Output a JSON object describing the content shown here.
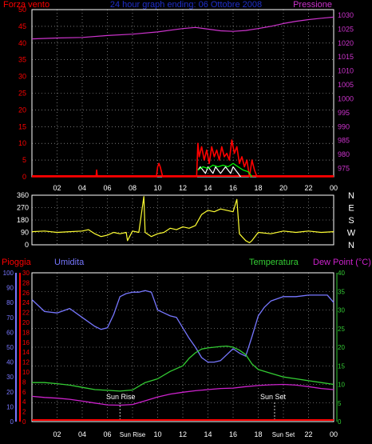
{
  "colors": {
    "wind": "#ff0000",
    "gust": "#ffffff",
    "avgwind": "#00ff00",
    "pressure": "#cc33cc",
    "direction": "#ffff33",
    "rain": "#ff0000",
    "humidity": "#7777ff",
    "temperature": "#33cc33",
    "dewpoint": "#cc22cc",
    "grid": "#bbbbbb",
    "title": "#1f2fcc"
  },
  "chart_data": [
    {
      "type": "line",
      "title": "24 hour graph ending: 06 Ottobre 2008",
      "left_label": "Forza vento",
      "right_label": "Pressione",
      "left_ticks": [
        "0",
        "5",
        "10",
        "15",
        "20",
        "25",
        "30",
        "35",
        "40",
        "45",
        "50"
      ],
      "right_ticks": [
        "975",
        "980",
        "985",
        "990",
        "995",
        "1000",
        "1005",
        "1010",
        "1015",
        "1020",
        "1025",
        "1030"
      ],
      "x_ticks": [
        "02",
        "04",
        "06",
        "08",
        "10",
        "12",
        "14",
        "16",
        "18",
        "20",
        "22",
        "00"
      ],
      "left_range": [
        0,
        50
      ],
      "right_range": [
        972,
        1032
      ],
      "x_range": [
        0,
        24
      ],
      "grid": true,
      "series": [
        {
          "key": "pressure",
          "axis": "right",
          "x": [
            0,
            2,
            4,
            6,
            8,
            10,
            12,
            13,
            14,
            15,
            16,
            17,
            18,
            19,
            20,
            21,
            22,
            23,
            24
          ],
          "y": [
            1021.5,
            1021.8,
            1022,
            1022.7,
            1023.2,
            1024,
            1025.2,
            1025.6,
            1025,
            1024.4,
            1024.2,
            1024.5,
            1025.2,
            1026,
            1027,
            1027.8,
            1028.4,
            1028.9,
            1029.3
          ]
        },
        {
          "key": "wind",
          "axis": "left",
          "x": [
            0,
            5.1,
            5.15,
            5.2,
            9.9,
            10.0,
            10.1,
            10.2,
            10.4,
            13.1,
            13.2,
            13.3,
            13.5,
            13.7,
            13.9,
            14.1,
            14.3,
            14.5,
            14.7,
            14.9,
            15.1,
            15.3,
            15.5,
            15.7,
            15.9,
            16.1,
            16.3,
            16.5,
            16.7,
            16.9,
            17.1,
            17.3,
            17.5,
            17.7,
            17.9,
            18.0,
            24
          ],
          "y": [
            0,
            0,
            2,
            0,
            0,
            3,
            4,
            3,
            0,
            0,
            10,
            6,
            9,
            5,
            8,
            4,
            9,
            6,
            8,
            5,
            9,
            6,
            7,
            5,
            11,
            7,
            9,
            4,
            6,
            3,
            5,
            0,
            5,
            2,
            0,
            0,
            0
          ]
        },
        {
          "key": "gust",
          "axis": "left",
          "x": [
            13.2,
            13.4,
            13.6,
            13.8,
            14.0,
            14.2,
            14.4,
            14.6,
            14.8,
            15.0,
            15.2,
            15.4,
            15.6,
            15.8,
            16.0,
            16.2,
            16.4,
            16.6
          ],
          "y": [
            2,
            3,
            2,
            1,
            3,
            2,
            1,
            3,
            2,
            1,
            2,
            3,
            2,
            1,
            3,
            2,
            1,
            0
          ]
        },
        {
          "key": "avgwind",
          "axis": "left",
          "x": [
            13.2,
            13.6,
            14.0,
            14.4,
            14.8,
            15.2,
            15.6,
            16.0,
            16.4,
            16.8,
            17.2,
            17.5
          ],
          "y": [
            2,
            3,
            2.5,
            3.5,
            3,
            3.5,
            3,
            4,
            3,
            2,
            1.5,
            0
          ]
        }
      ]
    },
    {
      "type": "line",
      "left_ticks": [
        "0",
        "90",
        "180",
        "270",
        "360"
      ],
      "right_labels": [
        "N",
        "W",
        "S",
        "E",
        "N"
      ],
      "left_range": [
        0,
        360
      ],
      "x_range": [
        0,
        24
      ],
      "grid": true,
      "series": [
        {
          "key": "direction",
          "x": [
            0,
            1,
            2,
            3,
            4,
            4.5,
            5,
            5.5,
            6,
            6.5,
            7,
            7.5,
            7.6,
            8,
            8.5,
            8.9,
            9,
            9.5,
            10,
            10.5,
            11,
            11.5,
            12,
            12.5,
            13,
            13.5,
            14,
            14.5,
            15,
            15.5,
            16,
            16.3,
            16.5,
            16.7,
            17,
            17.3,
            17.5,
            18,
            19,
            20,
            21,
            22,
            23,
            24
          ],
          "y": [
            95,
            100,
            90,
            95,
            100,
            110,
            80,
            60,
            70,
            90,
            80,
            90,
            30,
            100,
            90,
            350,
            90,
            60,
            80,
            90,
            120,
            110,
            130,
            120,
            140,
            220,
            250,
            240,
            260,
            250,
            240,
            330,
            80,
            60,
            30,
            15,
            30,
            90,
            80,
            100,
            90,
            100,
            90,
            95
          ]
        }
      ]
    },
    {
      "type": "line",
      "top_labels": [
        "Pioggia",
        "Umidita",
        "Temperatura",
        "Dew Point (°C)"
      ],
      "humidity_ticks": [
        "0",
        "10",
        "20",
        "30",
        "40",
        "50",
        "60",
        "70",
        "80",
        "90",
        "100"
      ],
      "rain_ticks": [
        "0",
        "2",
        "4",
        "6",
        "8",
        "10",
        "12",
        "14",
        "16",
        "18",
        "20",
        "22",
        "24",
        "26",
        "28",
        "30"
      ],
      "temp_ticks": [
        "0",
        "5",
        "10",
        "15",
        "20",
        "25",
        "30",
        "35",
        "40"
      ],
      "x_ticks": [
        "02",
        "04",
        "06",
        "Sun Rise",
        "10",
        "12",
        "14",
        "16",
        "18",
        "Sun Set",
        "22",
        "00"
      ],
      "annotations": [
        "Sun Rise",
        "Sun Set"
      ],
      "humidity_range": [
        0,
        100
      ],
      "temp_range": [
        0,
        40
      ],
      "x_range": [
        0,
        24
      ],
      "grid": true,
      "series": [
        {
          "key": "humidity",
          "axis": "humidity",
          "x": [
            0,
            1,
            2,
            3,
            4,
            5,
            5.5,
            6,
            6.5,
            7,
            7.5,
            8,
            8.5,
            9,
            9.5,
            10,
            10.5,
            11,
            11.5,
            12,
            12.5,
            13,
            13.5,
            14,
            14.5,
            15,
            15.5,
            16,
            16.5,
            17,
            17.5,
            18,
            18.5,
            19,
            20,
            21,
            22,
            23,
            23.5,
            24
          ],
          "y": [
            82,
            74,
            73,
            76,
            70,
            64,
            62,
            63,
            72,
            84,
            86,
            87,
            87,
            88,
            87,
            75,
            73,
            71,
            70,
            63,
            56,
            50,
            43,
            40,
            40,
            41,
            45,
            49,
            46,
            44,
            57,
            71,
            77,
            81,
            84,
            84,
            85,
            85,
            85,
            80
          ]
        },
        {
          "key": "temperature",
          "axis": "temp",
          "x": [
            0,
            1,
            2,
            3,
            4,
            5,
            6,
            7,
            8,
            9,
            10,
            11,
            12,
            12.5,
            13,
            13.5,
            14,
            14.5,
            15,
            15.5,
            16,
            16.5,
            17,
            17.5,
            18,
            19,
            20,
            21,
            22,
            23,
            24
          ],
          "y": [
            10.5,
            10.5,
            10.2,
            9.8,
            9.2,
            8.6,
            8.4,
            8.2,
            8.5,
            10.5,
            11.5,
            13.5,
            15,
            17,
            18.5,
            19.5,
            19.8,
            20,
            20.2,
            20.3,
            20,
            19.2,
            18,
            15.5,
            14,
            13,
            12,
            11.5,
            11,
            10.5,
            10
          ]
        },
        {
          "key": "dewpoint",
          "axis": "temp",
          "x": [
            0,
            1,
            2,
            3,
            4,
            5,
            6,
            7,
            8,
            9,
            10,
            11,
            12,
            13,
            14,
            15,
            16,
            17,
            18,
            19,
            20,
            21,
            22,
            23,
            24
          ],
          "y": [
            6.8,
            6.5,
            6.3,
            6.0,
            5.5,
            5.0,
            4.5,
            4.4,
            4.6,
            5.6,
            6.6,
            7.4,
            7.9,
            8.3,
            8.6,
            8.9,
            9.0,
            9.4,
            9.7,
            9.9,
            10.0,
            9.8,
            9.4,
            8.9,
            8.6
          ]
        },
        {
          "key": "rain",
          "axis": "rain",
          "x": [
            0,
            24
          ],
          "y": [
            0,
            0
          ]
        }
      ]
    }
  ]
}
